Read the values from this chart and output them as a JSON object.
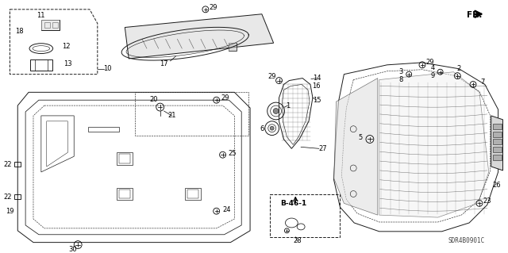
{
  "bg_color": "#ffffff",
  "line_color": "#1a1a1a",
  "diagram_code": "SDR4B0901C",
  "figsize": [
    6.4,
    3.19
  ],
  "dpi": 100
}
